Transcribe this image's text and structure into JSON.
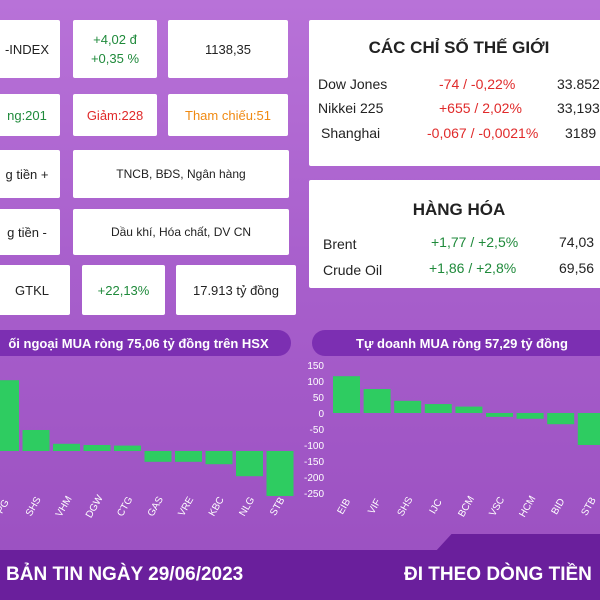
{
  "left_grid": {
    "row1": {
      "label": "-INDEX",
      "change_abs": "+4,02 đ",
      "change_pct": "+0,35 %",
      "value": "1138,35"
    },
    "row2": {
      "up": "ng:201",
      "down": "Giảm:228",
      "ref": "Tham chiếu:51"
    },
    "row3": {
      "label": "g tiền +",
      "sectors": "TNCB, BĐS, Ngân hàng"
    },
    "row4": {
      "label": "g tiền -",
      "sectors": "Dầu khí, Hóa chất, DV CN"
    },
    "row5": {
      "label": "GTKL",
      "pct": "+22,13%",
      "value": "17.913 tỷ đồng"
    }
  },
  "world": {
    "title": "CÁC CHỈ SỐ THẾ GIỚI",
    "rows": [
      {
        "name": "Dow Jones",
        "change": "-74 / -0,22%",
        "value": "33.852",
        "color": "red"
      },
      {
        "name": "Nikkei 225",
        "change": "+655 / 2,02%",
        "value": "33,193",
        "color": "red"
      },
      {
        "name": "Shanghai",
        "change": "-0,067 / -0,0021%",
        "value": "3189",
        "color": "red"
      }
    ]
  },
  "commodities": {
    "title": "HÀNG HÓA",
    "rows": [
      {
        "name": "Brent",
        "change": "+1,77 / +2,5%",
        "value": "74,03"
      },
      {
        "name": "Crude Oil",
        "change": "+1,86 / +2,8%",
        "value": "69,56"
      }
    ]
  },
  "banners": {
    "left": "ối ngoại MUA ròng  75,06 tỷ đồng trên HSX",
    "right": "Tự doanh MUA ròng 57,29 tỷ đồng"
  },
  "footer": {
    "left": "BẢN TIN NGÀY 29/06/2023",
    "right": "ĐI THEO DÒNG TIỀN"
  },
  "chart_data": [
    {
      "type": "bar",
      "title": "",
      "categories": [
        "PG",
        "SHS",
        "VHM",
        "DGW",
        "CTG",
        "GAS",
        "VRE",
        "KBC",
        "NLG",
        "STB"
      ],
      "values": [
        118,
        35,
        12,
        10,
        9,
        -18,
        -18,
        -22,
        -42,
        -75
      ],
      "bar_color": "#2ecc61"
    },
    {
      "type": "bar",
      "title": "",
      "categories": [
        "EIB",
        "VIF",
        "SHS",
        "IJC",
        "BCM",
        "VSC",
        "HCM",
        "BID",
        "STB"
      ],
      "values": [
        115,
        75,
        38,
        28,
        20,
        -12,
        -18,
        -35,
        -100
      ],
      "ylim": [
        -250,
        150
      ],
      "yticks": [
        150,
        100,
        50,
        0,
        -50,
        -100,
        -150,
        -200,
        -250
      ],
      "bar_color": "#2ecc61"
    }
  ]
}
